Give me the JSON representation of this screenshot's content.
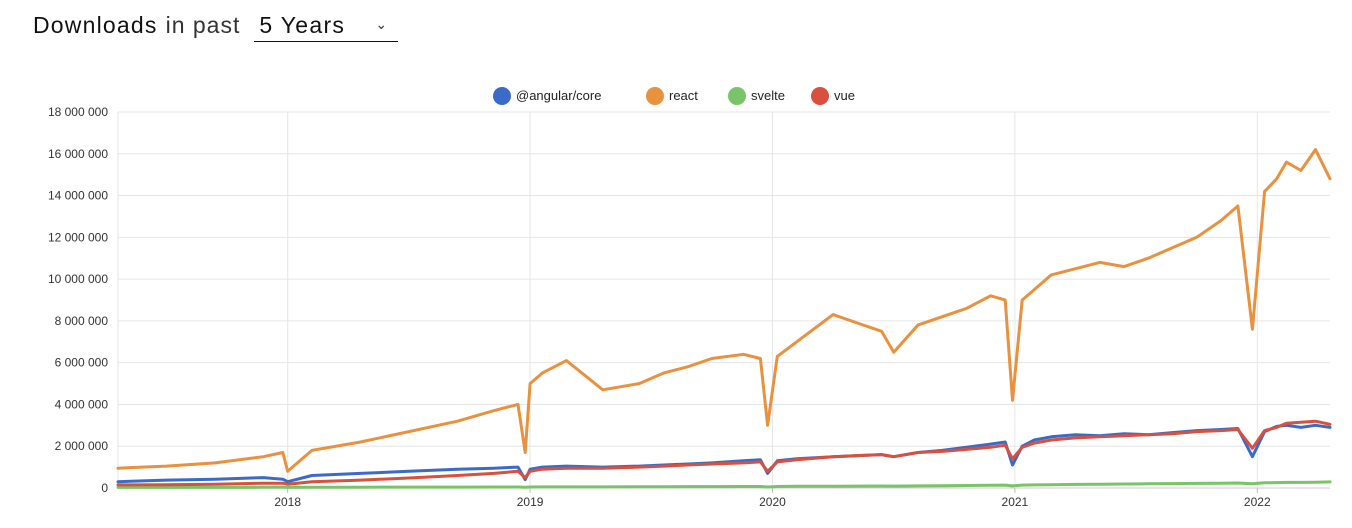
{
  "header": {
    "title": "Downloads",
    "connector": "in past",
    "period_selected": "5 Years"
  },
  "chart_data": {
    "type": "line",
    "title": "",
    "xlabel": "",
    "ylabel": "",
    "ylim": [
      0,
      18000000
    ],
    "y_ticks": [
      0,
      2000000,
      4000000,
      6000000,
      8000000,
      10000000,
      12000000,
      14000000,
      16000000,
      18000000
    ],
    "y_tick_labels": [
      "0",
      "2 000 000",
      "4 000 000",
      "6 000 000",
      "8 000 000",
      "10 000 000",
      "12 000 000",
      "14 000 000",
      "16 000 000",
      "18 000 000"
    ],
    "x_ticks": [
      2018,
      2019,
      2020,
      2021,
      2022
    ],
    "x_tick_labels": [
      "2018",
      "2019",
      "2020",
      "2021",
      "2022"
    ],
    "xlim": [
      2017.3,
      2022.3
    ],
    "grid": true,
    "legend_position": "top-center",
    "x": [
      2017.3,
      2017.5,
      2017.7,
      2017.9,
      2017.98,
      2018.0,
      2018.1,
      2018.3,
      2018.5,
      2018.7,
      2018.85,
      2018.95,
      2018.98,
      2019.0,
      2019.05,
      2019.15,
      2019.3,
      2019.45,
      2019.55,
      2019.65,
      2019.75,
      2019.88,
      2019.95,
      2019.98,
      2020.02,
      2020.1,
      2020.25,
      2020.35,
      2020.45,
      2020.5,
      2020.6,
      2020.7,
      2020.8,
      2020.9,
      2020.96,
      2020.99,
      2021.03,
      2021.08,
      2021.15,
      2021.25,
      2021.35,
      2021.45,
      2021.55,
      2021.65,
      2021.75,
      2021.85,
      2021.92,
      2021.98,
      2022.03,
      2022.08,
      2022.12,
      2022.18,
      2022.24,
      2022.3
    ],
    "series": [
      {
        "name": "@angular/core",
        "color": "#3a6bc9",
        "values": [
          300000,
          380000,
          420000,
          500000,
          420000,
          300000,
          600000,
          700000,
          800000,
          900000,
          950000,
          1000000,
          400000,
          900000,
          1000000,
          1050000,
          1000000,
          1050000,
          1100000,
          1150000,
          1200000,
          1300000,
          1350000,
          700000,
          1300000,
          1400000,
          1500000,
          1550000,
          1600000,
          1500000,
          1700000,
          1800000,
          1950000,
          2100000,
          2200000,
          1100000,
          2000000,
          2300000,
          2450000,
          2550000,
          2500000,
          2600000,
          2550000,
          2650000,
          2750000,
          2800000,
          2850000,
          1500000,
          2700000,
          2950000,
          3000000,
          2900000,
          3000000,
          2900000
        ]
      },
      {
        "name": "react",
        "color": "#e8913e",
        "values": [
          950000,
          1050000,
          1200000,
          1500000,
          1700000,
          800000,
          1800000,
          2200000,
          2700000,
          3200000,
          3700000,
          4000000,
          1700000,
          5000000,
          5500000,
          6100000,
          4700000,
          5000000,
          5500000,
          5800000,
          6200000,
          6400000,
          6200000,
          3000000,
          6300000,
          7000000,
          8300000,
          7900000,
          7500000,
          6500000,
          7800000,
          8200000,
          8600000,
          9200000,
          9000000,
          4200000,
          9000000,
          9500000,
          10200000,
          10500000,
          10800000,
          10600000,
          11000000,
          11500000,
          12000000,
          12800000,
          13500000,
          7600000,
          14200000,
          14800000,
          15600000,
          15200000,
          16200000,
          14800000
        ]
      },
      {
        "name": "svelte",
        "color": "#78c466",
        "values": [
          30000,
          30000,
          30000,
          35000,
          35000,
          30000,
          40000,
          40000,
          45000,
          45000,
          50000,
          50000,
          40000,
          50000,
          55000,
          55000,
          55000,
          60000,
          60000,
          65000,
          65000,
          70000,
          70000,
          50000,
          70000,
          80000,
          85000,
          90000,
          95000,
          90000,
          100000,
          110000,
          120000,
          130000,
          140000,
          100000,
          140000,
          150000,
          160000,
          170000,
          180000,
          190000,
          200000,
          210000,
          220000,
          230000,
          240000,
          200000,
          250000,
          260000,
          270000,
          270000,
          280000,
          290000
        ]
      },
      {
        "name": "vue",
        "color": "#d9503e",
        "values": [
          150000,
          160000,
          180000,
          230000,
          230000,
          180000,
          300000,
          380000,
          480000,
          600000,
          700000,
          800000,
          500000,
          800000,
          900000,
          950000,
          950000,
          1000000,
          1050000,
          1100000,
          1150000,
          1200000,
          1250000,
          800000,
          1250000,
          1350000,
          1500000,
          1550000,
          1600000,
          1500000,
          1700000,
          1750000,
          1850000,
          1950000,
          2050000,
          1400000,
          1950000,
          2150000,
          2300000,
          2400000,
          2450000,
          2500000,
          2550000,
          2600000,
          2700000,
          2750000,
          2800000,
          1900000,
          2750000,
          2900000,
          3100000,
          3150000,
          3200000,
          3050000
        ]
      }
    ]
  }
}
